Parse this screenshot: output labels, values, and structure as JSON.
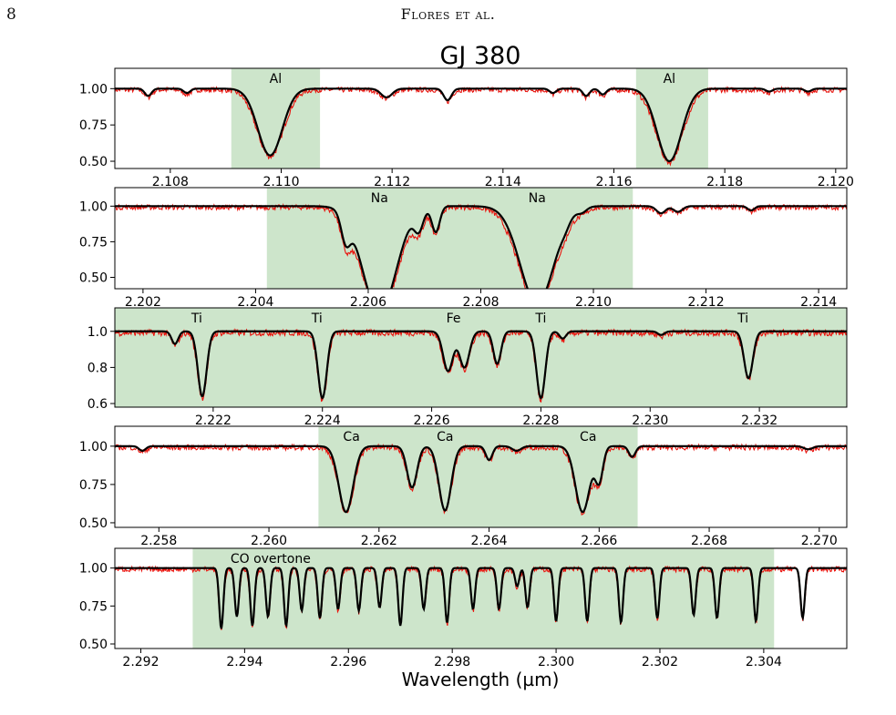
{
  "header": {
    "page_number": "8",
    "running_head": "Flores et al."
  },
  "colors": {
    "observed": "#e8120c",
    "model": "#000000",
    "highlight": "#cde5cb"
  },
  "chart_data": {
    "type": "line",
    "title": "GJ 380",
    "xlabel": "Wavelength (µm)",
    "ylabel": "",
    "legend": "none",
    "grid": false,
    "series_names": [
      "",
      ""
    ],
    "panels": [
      {
        "xlim": [
          2.107,
          2.1202
        ],
        "ylim": [
          0.45,
          1.14
        ],
        "xticks": [
          2.108,
          2.11,
          2.112,
          2.114,
          2.116,
          2.118,
          2.12
        ],
        "xtick_labels": [
          "2.108",
          "2.110",
          "2.112",
          "2.114",
          "2.116",
          "2.118",
          "2.120"
        ],
        "yticks": [
          0.5,
          0.75,
          1.0
        ],
        "ytick_labels": [
          "0.50",
          "0.75",
          "1.00"
        ],
        "regions": [
          [
            2.1091,
            2.1107
          ],
          [
            2.1164,
            2.1177
          ]
        ],
        "labels": [
          {
            "text": "Al",
            "x": 2.1099
          },
          {
            "text": "Al",
            "x": 2.117
          }
        ],
        "lines": [
          {
            "x": 2.1076,
            "depth": 0.05,
            "width": 6e-05
          },
          {
            "x": 2.1083,
            "depth": 0.03,
            "width": 6e-05
          },
          {
            "x": 2.1098,
            "depth": 0.46,
            "width": 0.00022
          },
          {
            "x": 2.1119,
            "depth": 0.06,
            "width": 0.0001
          },
          {
            "x": 2.113,
            "depth": 0.08,
            "width": 7e-05
          },
          {
            "x": 2.1149,
            "depth": 0.03,
            "width": 6e-05
          },
          {
            "x": 2.1155,
            "depth": 0.05,
            "width": 6e-05
          },
          {
            "x": 2.1158,
            "depth": 0.04,
            "width": 6e-05
          },
          {
            "x": 2.117,
            "depth": 0.5,
            "width": 0.00022
          },
          {
            "x": 2.1188,
            "depth": 0.02,
            "width": 6e-05
          },
          {
            "x": 2.1195,
            "depth": 0.02,
            "width": 6e-05
          }
        ]
      },
      {
        "xlim": [
          2.2015,
          2.2145
        ],
        "ylim": [
          0.42,
          1.13
        ],
        "xticks": [
          2.202,
          2.204,
          2.206,
          2.208,
          2.21,
          2.212,
          2.214
        ],
        "xtick_labels": [
          "2.202",
          "2.204",
          "2.206",
          "2.208",
          "2.210",
          "2.212",
          "2.214"
        ],
        "yticks": [
          0.5,
          0.75,
          1.0
        ],
        "ytick_labels": [
          "0.50",
          "0.75",
          "1.00"
        ],
        "regions": [
          [
            2.2042,
            2.2107
          ]
        ],
        "labels": [
          {
            "text": "Na",
            "x": 2.2062
          },
          {
            "text": "Na",
            "x": 2.209
          }
        ],
        "lines": [
          {
            "x": 2.2056,
            "depth": 0.18,
            "width": 8e-05
          },
          {
            "x": 2.2062,
            "depth": 0.74,
            "width": 0.0003
          },
          {
            "x": 2.2069,
            "depth": 0.14,
            "width": 8e-05
          },
          {
            "x": 2.2072,
            "depth": 0.18,
            "width": 7e-05
          },
          {
            "x": 2.209,
            "depth": 0.68,
            "width": 0.0003
          },
          {
            "x": 2.2095,
            "depth": 0.03,
            "width": 8e-05
          },
          {
            "x": 2.2098,
            "depth": 0.03,
            "width": 8e-05
          },
          {
            "x": 2.2112,
            "depth": 0.05,
            "width": 8e-05
          },
          {
            "x": 2.2115,
            "depth": 0.04,
            "width": 8e-05
          },
          {
            "x": 2.2128,
            "depth": 0.03,
            "width": 6e-05
          }
        ]
      },
      {
        "xlim": [
          2.2202,
          2.2336
        ],
        "ylim": [
          0.58,
          1.13
        ],
        "xticks": [
          2.222,
          2.224,
          2.226,
          2.228,
          2.23,
          2.232
        ],
        "xtick_labels": [
          "2.222",
          "2.224",
          "2.226",
          "2.228",
          "2.230",
          "2.232"
        ],
        "yticks": [
          0.6,
          0.8,
          1.0
        ],
        "ytick_labels": [
          "0.6",
          "0.8",
          "1.0"
        ],
        "regions": [
          [
            2.2202,
            2.2336
          ]
        ],
        "labels": [
          {
            "text": "Ti",
            "x": 2.2217
          },
          {
            "text": "Ti",
            "x": 2.2239
          },
          {
            "text": "Fe",
            "x": 2.2264
          },
          {
            "text": "Ti",
            "x": 2.228
          },
          {
            "text": "Ti",
            "x": 2.2317
          }
        ],
        "lines": [
          {
            "x": 2.2213,
            "depth": 0.07,
            "width": 6e-05
          },
          {
            "x": 2.2218,
            "depth": 0.36,
            "width": 8e-05
          },
          {
            "x": 2.224,
            "depth": 0.37,
            "width": 8e-05
          },
          {
            "x": 2.2263,
            "depth": 0.22,
            "width": 9e-05
          },
          {
            "x": 2.2266,
            "depth": 0.2,
            "width": 9e-05
          },
          {
            "x": 2.2272,
            "depth": 0.18,
            "width": 7e-05
          },
          {
            "x": 2.228,
            "depth": 0.37,
            "width": 8e-05
          },
          {
            "x": 2.2284,
            "depth": 0.04,
            "width": 6e-05
          },
          {
            "x": 2.2302,
            "depth": 0.02,
            "width": 6e-05
          },
          {
            "x": 2.2318,
            "depth": 0.26,
            "width": 8e-05
          }
        ]
      },
      {
        "xlim": [
          2.2572,
          2.2705
        ],
        "ylim": [
          0.47,
          1.13
        ],
        "xticks": [
          2.258,
          2.26,
          2.262,
          2.264,
          2.266,
          2.268,
          2.27
        ],
        "xtick_labels": [
          "2.258",
          "2.260",
          "2.262",
          "2.264",
          "2.266",
          "2.268",
          "2.270"
        ],
        "yticks": [
          0.5,
          0.75,
          1.0
        ],
        "ytick_labels": [
          "0.50",
          "0.75",
          "1.00"
        ],
        "regions": [
          [
            2.2609,
            2.2667
          ]
        ],
        "labels": [
          {
            "text": "Ca",
            "x": 2.2615
          },
          {
            "text": "Ca",
            "x": 2.2632
          },
          {
            "text": "Ca",
            "x": 2.2658
          }
        ],
        "lines": [
          {
            "x": 2.2577,
            "depth": 0.03,
            "width": 6e-05
          },
          {
            "x": 2.2614,
            "depth": 0.43,
            "width": 0.00013
          },
          {
            "x": 2.2626,
            "depth": 0.27,
            "width": 9e-05
          },
          {
            "x": 2.2632,
            "depth": 0.42,
            "width": 0.00011
          },
          {
            "x": 2.264,
            "depth": 0.09,
            "width": 6e-05
          },
          {
            "x": 2.2645,
            "depth": 0.03,
            "width": 8e-05
          },
          {
            "x": 2.2657,
            "depth": 0.43,
            "width": 0.00013
          },
          {
            "x": 2.266,
            "depth": 0.22,
            "width": 7e-05
          },
          {
            "x": 2.2666,
            "depth": 0.07,
            "width": 6e-05
          },
          {
            "x": 2.2698,
            "depth": 0.02,
            "width": 8e-05
          }
        ]
      },
      {
        "xlim": [
          2.2915,
          2.3056
        ],
        "ylim": [
          0.47,
          1.13
        ],
        "xticks": [
          2.292,
          2.294,
          2.296,
          2.298,
          2.3,
          2.302,
          2.304
        ],
        "xtick_labels": [
          "2.292",
          "2.294",
          "2.296",
          "2.298",
          "2.300",
          "2.302",
          "2.304"
        ],
        "yticks": [
          0.5,
          0.75,
          1.0
        ],
        "ytick_labels": [
          "0.50",
          "0.75",
          "1.00"
        ],
        "regions": [
          [
            2.293,
            2.3042
          ]
        ],
        "labels": [
          {
            "text": "CO overtone",
            "x": 2.2945
          }
        ],
        "lines": [
          {
            "x": 2.29355,
            "depth": 0.4,
            "width": 4e-05
          },
          {
            "x": 2.29385,
            "depth": 0.32,
            "width": 4e-05
          },
          {
            "x": 2.29415,
            "depth": 0.38,
            "width": 4e-05
          },
          {
            "x": 2.29445,
            "depth": 0.32,
            "width": 4e-05
          },
          {
            "x": 2.2948,
            "depth": 0.38,
            "width": 4e-05
          },
          {
            "x": 2.2951,
            "depth": 0.28,
            "width": 4e-05
          },
          {
            "x": 2.29545,
            "depth": 0.33,
            "width": 4e-05
          },
          {
            "x": 2.2958,
            "depth": 0.27,
            "width": 4e-05
          },
          {
            "x": 2.2962,
            "depth": 0.28,
            "width": 4e-05
          },
          {
            "x": 2.2966,
            "depth": 0.26,
            "width": 4e-05
          },
          {
            "x": 2.297,
            "depth": 0.38,
            "width": 4e-05
          },
          {
            "x": 2.29745,
            "depth": 0.27,
            "width": 4e-05
          },
          {
            "x": 2.2979,
            "depth": 0.36,
            "width": 4e-05
          },
          {
            "x": 2.2984,
            "depth": 0.27,
            "width": 4e-05
          },
          {
            "x": 2.2989,
            "depth": 0.27,
            "width": 4e-05
          },
          {
            "x": 2.29925,
            "depth": 0.12,
            "width": 4e-05
          },
          {
            "x": 2.29945,
            "depth": 0.26,
            "width": 4e-05
          },
          {
            "x": 2.3,
            "depth": 0.35,
            "width": 4e-05
          },
          {
            "x": 2.3006,
            "depth": 0.35,
            "width": 4e-05
          },
          {
            "x": 2.30125,
            "depth": 0.36,
            "width": 4e-05
          },
          {
            "x": 2.30195,
            "depth": 0.33,
            "width": 4e-05
          },
          {
            "x": 2.30265,
            "depth": 0.31,
            "width": 4e-05
          },
          {
            "x": 2.3031,
            "depth": 0.33,
            "width": 4e-05
          },
          {
            "x": 2.30385,
            "depth": 0.35,
            "width": 4e-05
          },
          {
            "x": 2.30475,
            "depth": 0.33,
            "width": 4e-05
          }
        ]
      }
    ]
  }
}
